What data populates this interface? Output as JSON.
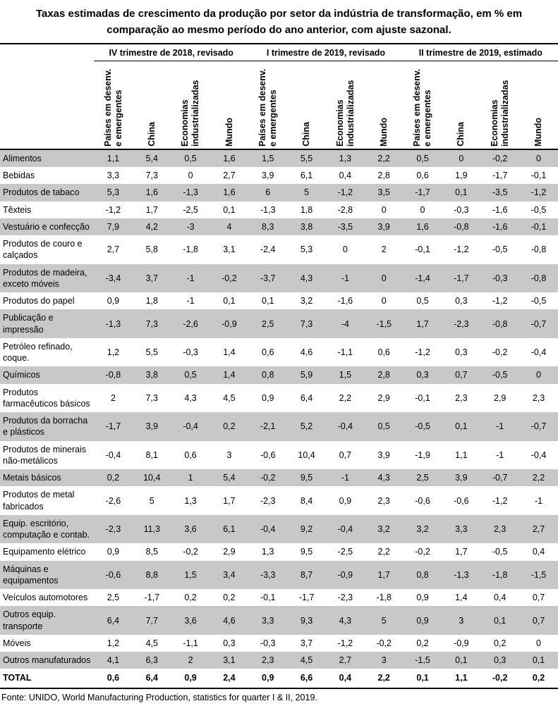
{
  "title": "Taxas estimadas de crescimento da produção por setor da indústria de transformação, em % em comparação ao mesmo período do ano anterior, com ajuste sazonal.",
  "colors": {
    "stripe": "#c8c8c8",
    "border": "#000000",
    "text": "#000000"
  },
  "table": {
    "quarter_groups": [
      {
        "label": "IV trimestre de 2018, revisado"
      },
      {
        "label": "I trimestre de 2019, revisado"
      },
      {
        "label": "II trimestre de 2019, estimado"
      }
    ],
    "region_columns": [
      "Países em desenv. e emergentes",
      "China",
      "Economias industrializadas",
      "Mundo"
    ],
    "rows": [
      {
        "sector": "Alimentos",
        "values": [
          "1,1",
          "5,4",
          "0,5",
          "1,6",
          "1,5",
          "5,5",
          "1,3",
          "2,2",
          "0,5",
          "0",
          "-0,2",
          "0"
        ]
      },
      {
        "sector": "Bebidas",
        "values": [
          "3,3",
          "7,3",
          "0",
          "2,7",
          "3,9",
          "6,1",
          "0,4",
          "2,8",
          "0,6",
          "1,9",
          "-1,7",
          "-0,1"
        ]
      },
      {
        "sector": "Produtos de tabaco",
        "values": [
          "5,3",
          "1,6",
          "-1,3",
          "1,6",
          "6",
          "5",
          "-1,2",
          "3,5",
          "-1,7",
          "0,1",
          "-3,5",
          "-1,2"
        ]
      },
      {
        "sector": "Têxteis",
        "values": [
          "-1,2",
          "1,7",
          "-2,5",
          "0,1",
          "-1,3",
          "1,8",
          "-2,8",
          "0",
          "0",
          "-0,3",
          "-1,6",
          "-0,5"
        ]
      },
      {
        "sector": "Vestuário e confecção",
        "values": [
          "7,9",
          "4,2",
          "-3",
          "4",
          "8,3",
          "3,8",
          "-3,5",
          "3,9",
          "1,6",
          "-0,8",
          "-1,6",
          "-0,1"
        ]
      },
      {
        "sector": "Produtos de couro e calçados",
        "values": [
          "2,7",
          "5,8",
          "-1,8",
          "3,1",
          "-2,4",
          "5,3",
          "0",
          "2",
          "-0,1",
          "-1,2",
          "-0,5",
          "-0,8"
        ]
      },
      {
        "sector": "Produtos de madeira, exceto móveis",
        "values": [
          "-3,4",
          "3,7",
          "-1",
          "-0,2",
          "-3,7",
          "4,3",
          "-1",
          "0",
          "-1,4",
          "-1,7",
          "-0,3",
          "-0,8"
        ]
      },
      {
        "sector": "Produtos do papel",
        "values": [
          "0,9",
          "1,8",
          "-1",
          "0,1",
          "0,1",
          "3,2",
          "-1,6",
          "0",
          "0,5",
          "0,3",
          "-1,2",
          "-0,5"
        ]
      },
      {
        "sector": "Publicação e impressão",
        "values": [
          "-1,3",
          "7,3",
          "-2,6",
          "-0,9",
          "2,5",
          "7,3",
          "-4",
          "-1,5",
          "1,7",
          "-2,3",
          "-0,8",
          "-0,7"
        ]
      },
      {
        "sector": "Petróleo refinado, coque.",
        "values": [
          "1,2",
          "5,5",
          "-0,3",
          "1,4",
          "0,6",
          "4,6",
          "-1,1",
          "0,6",
          "-1,2",
          "0,3",
          "-0,2",
          "-0,4"
        ]
      },
      {
        "sector": "Químicos",
        "values": [
          "-0,8",
          "3,8",
          "0,5",
          "1,4",
          "0,8",
          "5,9",
          "1,5",
          "2,8",
          "0,3",
          "0,7",
          "-0,5",
          "0"
        ]
      },
      {
        "sector": "Produtos farmacêuticos básicos",
        "values": [
          "2",
          "7,3",
          "4,3",
          "4,5",
          "0,9",
          "6,4",
          "2,2",
          "2,9",
          "-0,1",
          "2,3",
          "2,9",
          "2,3"
        ]
      },
      {
        "sector": "Produtos da borracha e plásticos",
        "values": [
          "-1,7",
          "3,9",
          "-0,4",
          "0,2",
          "-2,1",
          "5,2",
          "-0,4",
          "0,5",
          "-0,5",
          "0,1",
          "-1",
          "-0,7"
        ]
      },
      {
        "sector": "Produtos de minerais não-metálicos",
        "values": [
          "-0,4",
          "8,1",
          "0,6",
          "3",
          "-0,6",
          "10,4",
          "0,7",
          "3,9",
          "-1,9",
          "1,1",
          "-1",
          "-0,4"
        ]
      },
      {
        "sector": "Metais básicos",
        "values": [
          "0,2",
          "10,4",
          "1",
          "5,4",
          "-0,2",
          "9,5",
          "-1",
          "4,3",
          "2,5",
          "3,9",
          "-0,7",
          "2,2"
        ]
      },
      {
        "sector": "Produtos de metal fabricados",
        "values": [
          "-2,6",
          "5",
          "1,3",
          "1,7",
          "-2,3",
          "8,4",
          "0,9",
          "2,3",
          "-0,6",
          "-0,6",
          "-1,2",
          "-1"
        ]
      },
      {
        "sector": "Equip. escritório, computação e contab.",
        "values": [
          "-2,3",
          "11,3",
          "3,6",
          "6,1",
          "-0,4",
          "9,2",
          "-0,4",
          "3,2",
          "3,2",
          "3,3",
          "2,3",
          "2,7"
        ]
      },
      {
        "sector": "Equipamento elétrico",
        "values": [
          "0,9",
          "8,5",
          "-0,2",
          "2,9",
          "1,3",
          "9,5",
          "-2,5",
          "2,2",
          "-0,2",
          "1,7",
          "-0,5",
          "0,4"
        ]
      },
      {
        "sector": "Máquinas e equipamentos",
        "values": [
          "-0,6",
          "8,8",
          "1,5",
          "3,4",
          "-3,3",
          "8,7",
          "-0,9",
          "1,7",
          "0,8",
          "-1,3",
          "-1,8",
          "-1,5"
        ]
      },
      {
        "sector": "Veículos automotores",
        "values": [
          "2,5",
          "-1,7",
          "0,2",
          "0,2",
          "-0,1",
          "-1,7",
          "-2,3",
          "-1,8",
          "0,9",
          "1,4",
          "0,4",
          "0,7"
        ]
      },
      {
        "sector": "Outros equip. transporte",
        "values": [
          "6,4",
          "7,7",
          "3,6",
          "4,6",
          "3,3",
          "9,3",
          "4,3",
          "5",
          "0,9",
          "3",
          "0,1",
          "0,7"
        ]
      },
      {
        "sector": "Móveis",
        "values": [
          "1,2",
          "4,5",
          "-1,1",
          "0,3",
          "-0,3",
          "3,7",
          "-1,2",
          "-0,2",
          "0,2",
          "-0,9",
          "0,2",
          "0"
        ]
      },
      {
        "sector": "Outros manufaturados",
        "values": [
          "4,1",
          "6,3",
          "2",
          "3,1",
          "2,3",
          "4,5",
          "2,7",
          "3",
          "-1,5",
          "0,1",
          "0,3",
          "0,1"
        ]
      }
    ],
    "total_row": {
      "sector": "TOTAL",
      "values": [
        "0,6",
        "6,4",
        "0,9",
        "2,4",
        "0,9",
        "6,6",
        "0,4",
        "2,2",
        "0,1",
        "1,1",
        "-0,2",
        "0,2"
      ]
    }
  },
  "footer": {
    "source": "Fonte: UNIDO, World Manufacturing Production, statistics for quarter I & II, 2019."
  }
}
